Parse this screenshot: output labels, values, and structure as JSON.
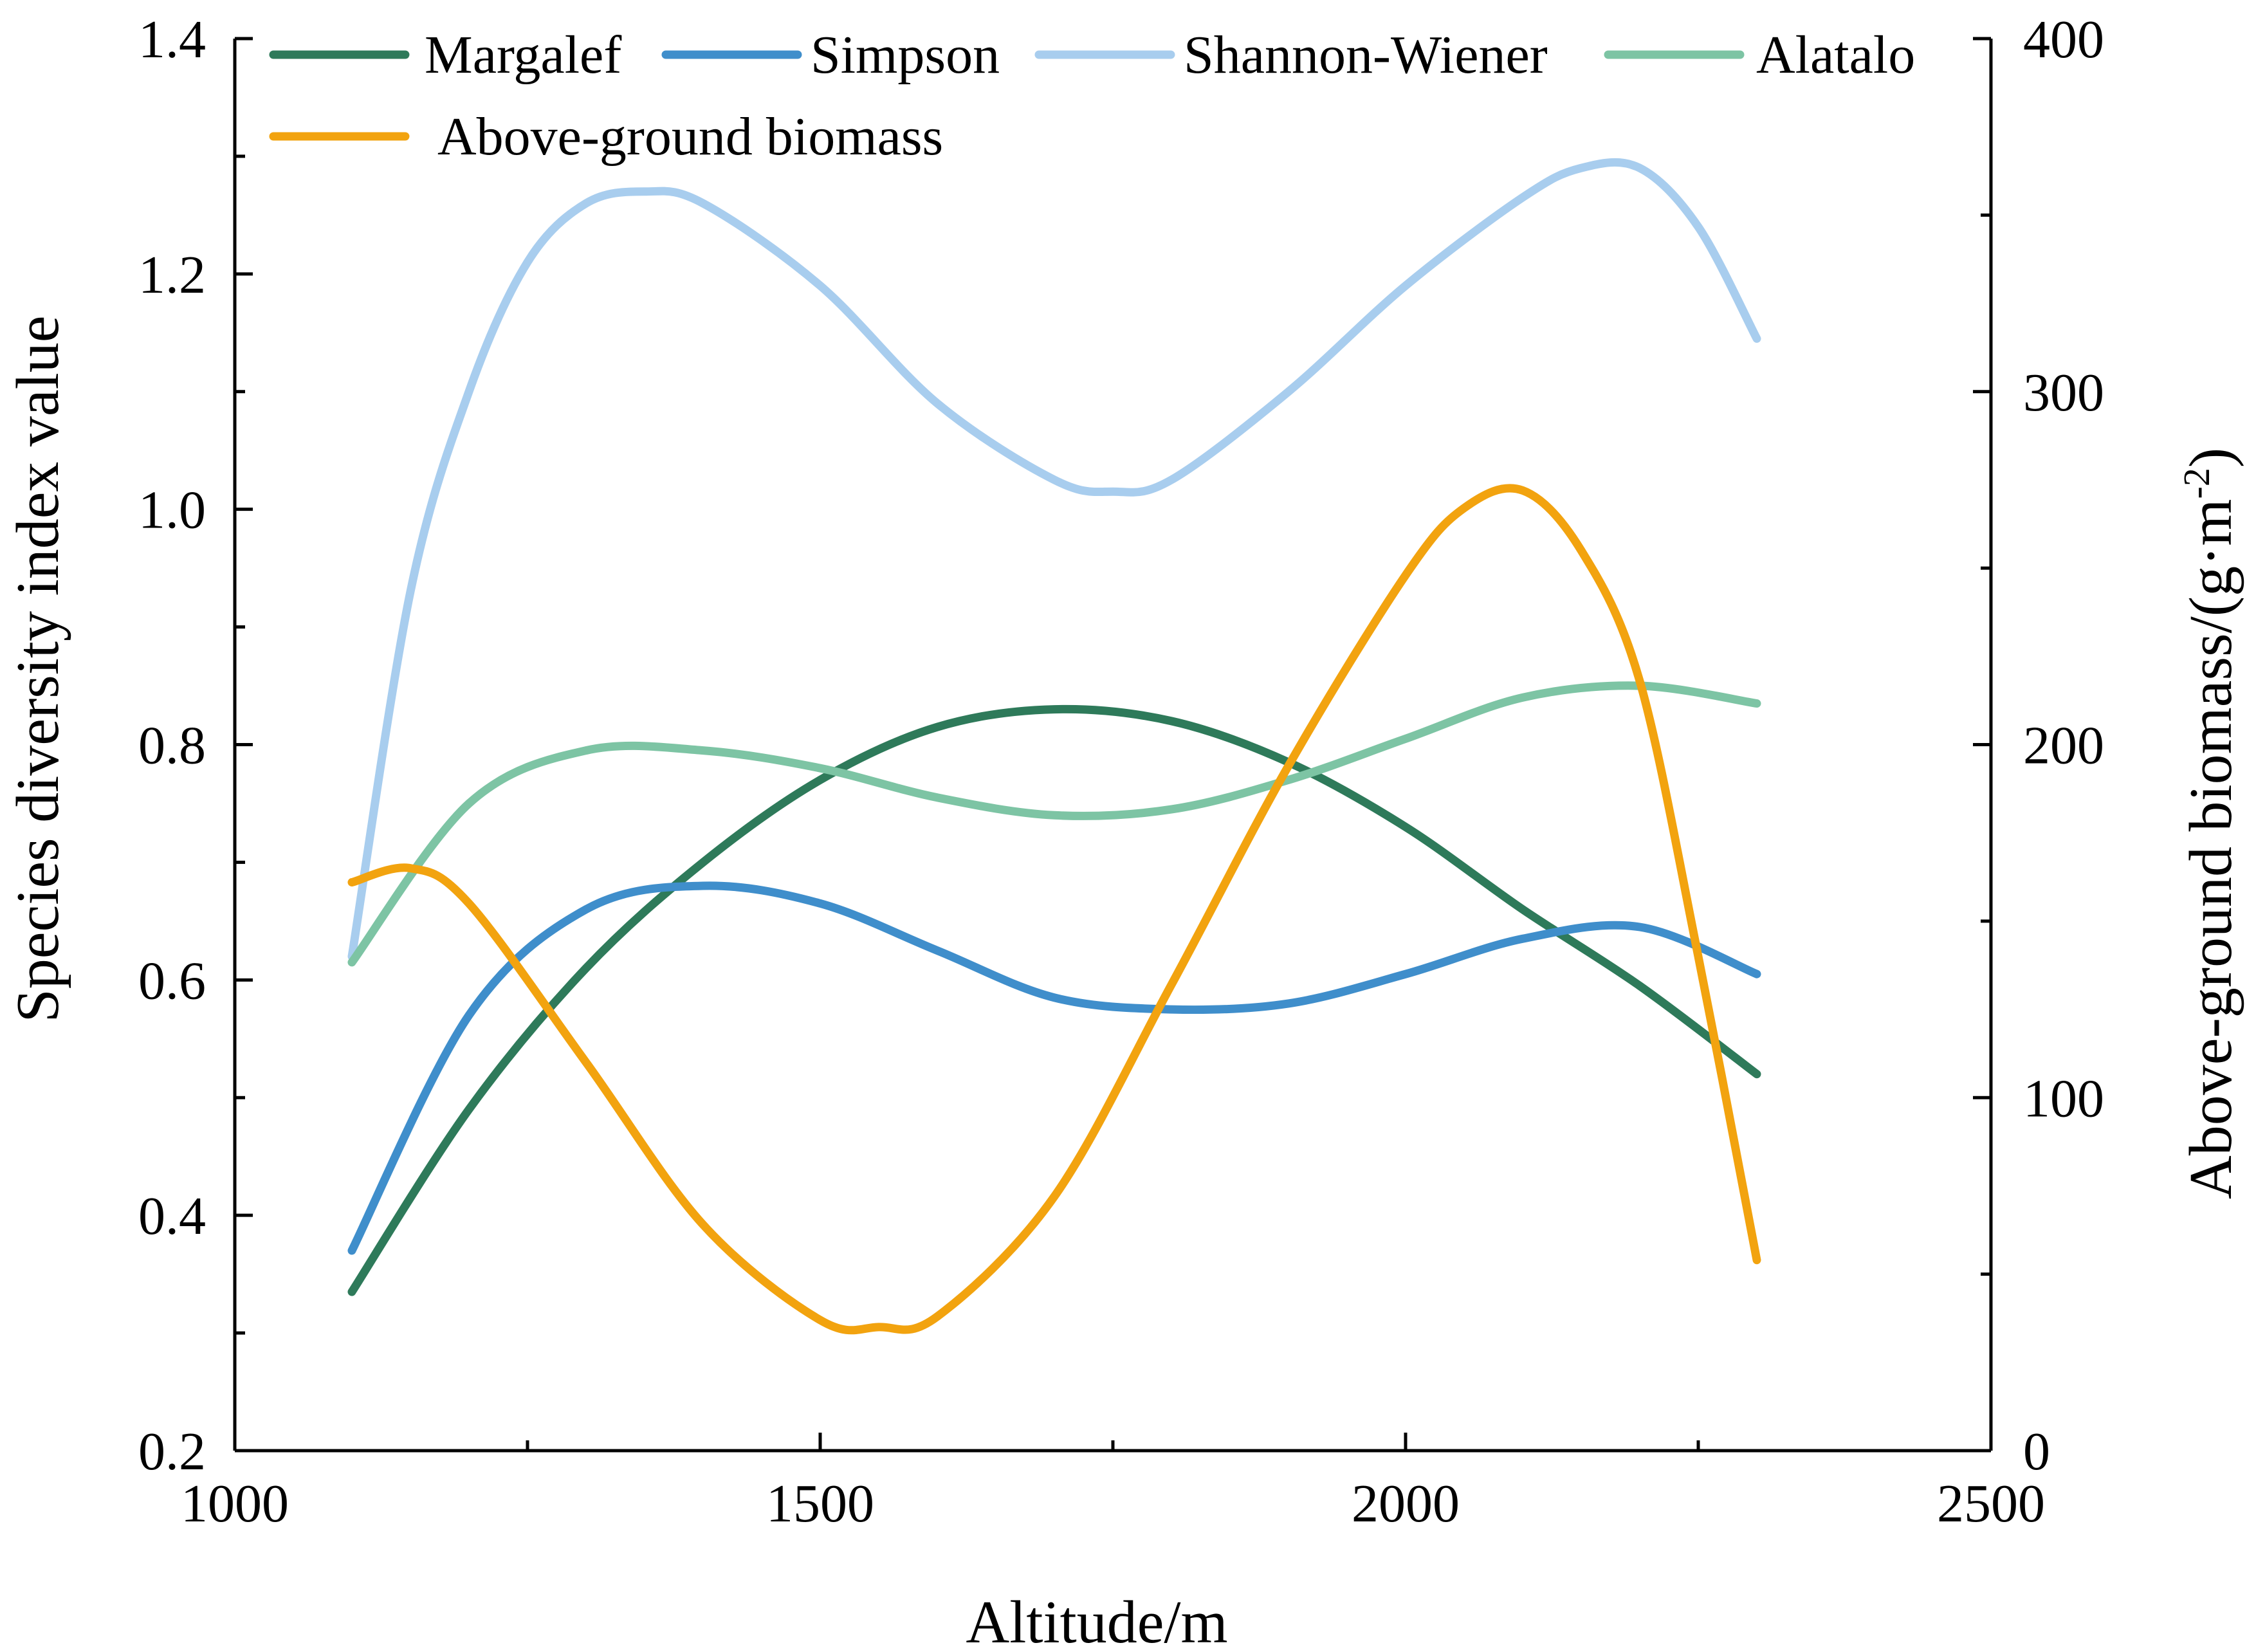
{
  "chart_data": {
    "type": "line",
    "x_axis": {
      "label": "Altitude/m",
      "range": [
        1000,
        2500
      ],
      "ticks": [
        1000,
        1500,
        2000,
        2500
      ],
      "minor_step": 250
    },
    "y_left": {
      "label": "Species diversity index value",
      "range": [
        0.2,
        1.4
      ],
      "ticks": [
        "0.2",
        "0.4",
        "0.6",
        "0.8",
        "1.0",
        "1.2",
        "1.4"
      ],
      "minor_step": 0.1
    },
    "y_right": {
      "label_main": "Above-ground biomass/(g·m",
      "label_sup": "-2",
      "label_close": ")",
      "range": [
        0,
        400
      ],
      "ticks": [
        0,
        100,
        200,
        300,
        400
      ],
      "minor_step": 50
    },
    "legend_position": "top",
    "series": [
      {
        "name": "Margalef",
        "axis": "left",
        "color": "#2e7a5a",
        "x": [
          1100,
          1200,
          1300,
          1400,
          1500,
          1600,
          1700,
          1800,
          1900,
          2000,
          2100,
          2200,
          2300
        ],
        "y": [
          0.335,
          0.49,
          0.61,
          0.7,
          0.77,
          0.815,
          0.83,
          0.82,
          0.785,
          0.73,
          0.66,
          0.595,
          0.52
        ]
      },
      {
        "name": "Simpson",
        "axis": "left",
        "color": "#3f8ecb",
        "x": [
          1100,
          1200,
          1300,
          1400,
          1500,
          1600,
          1700,
          1800,
          1900,
          2000,
          2100,
          2200,
          2300
        ],
        "y": [
          0.37,
          0.57,
          0.66,
          0.68,
          0.665,
          0.625,
          0.585,
          0.575,
          0.58,
          0.605,
          0.635,
          0.645,
          0.605
        ]
      },
      {
        "name": "Shannon-Wiener",
        "axis": "left",
        "color": "#a8cdee",
        "x": [
          1100,
          1150,
          1200,
          1250,
          1300,
          1350,
          1400,
          1500,
          1600,
          1700,
          1750,
          1800,
          1900,
          2000,
          2100,
          2150,
          2200,
          2250,
          2300
        ],
        "y": [
          0.62,
          0.93,
          1.1,
          1.21,
          1.26,
          1.27,
          1.26,
          1.19,
          1.09,
          1.025,
          1.015,
          1.025,
          1.1,
          1.19,
          1.265,
          1.29,
          1.29,
          1.24,
          1.145
        ]
      },
      {
        "name": "Alatalo",
        "axis": "left",
        "color": "#7dc4a4",
        "x": [
          1100,
          1200,
          1300,
          1400,
          1500,
          1600,
          1700,
          1800,
          1900,
          2000,
          2100,
          2200,
          2300
        ],
        "y": [
          0.615,
          0.75,
          0.795,
          0.795,
          0.78,
          0.755,
          0.74,
          0.745,
          0.77,
          0.805,
          0.84,
          0.85,
          0.835
        ]
      },
      {
        "name": "Above-ground biomass",
        "axis": "right",
        "color": "#f2a30f",
        "x": [
          1100,
          1150,
          1200,
          1300,
          1400,
          1500,
          1550,
          1600,
          1700,
          1800,
          1900,
          2000,
          2050,
          2100,
          2150,
          2200,
          2250,
          2300
        ],
        "y": [
          161,
          165,
          155,
          110,
          64,
          37,
          35,
          38,
          72,
          132,
          194,
          248,
          267,
          272,
          255,
          218,
          140,
          54
        ]
      }
    ]
  }
}
